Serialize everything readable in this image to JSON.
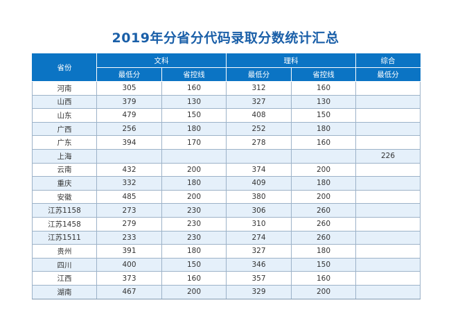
{
  "title": "2019年分省分代码录取分数统计汇总",
  "header": {
    "province": "省份",
    "wenke": "文科",
    "like": "理科",
    "zonghe": "综合",
    "min_score": "最低分",
    "control_line": "省控线"
  },
  "rows": [
    {
      "province": "河南",
      "wen_min": "305",
      "wen_ctrl": "160",
      "li_min": "312",
      "li_ctrl": "160",
      "zh_min": ""
    },
    {
      "province": "山西",
      "wen_min": "379",
      "wen_ctrl": "130",
      "li_min": "327",
      "li_ctrl": "130",
      "zh_min": ""
    },
    {
      "province": "山东",
      "wen_min": "479",
      "wen_ctrl": "150",
      "li_min": "408",
      "li_ctrl": "150",
      "zh_min": ""
    },
    {
      "province": "广西",
      "wen_min": "256",
      "wen_ctrl": "180",
      "li_min": "252",
      "li_ctrl": "180",
      "zh_min": ""
    },
    {
      "province": "广东",
      "wen_min": "394",
      "wen_ctrl": "170",
      "li_min": "278",
      "li_ctrl": "160",
      "zh_min": ""
    },
    {
      "province": "上海",
      "wen_min": "",
      "wen_ctrl": "",
      "li_min": "",
      "li_ctrl": "",
      "zh_min": "226"
    },
    {
      "province": "云南",
      "wen_min": "432",
      "wen_ctrl": "200",
      "li_min": "374",
      "li_ctrl": "200",
      "zh_min": ""
    },
    {
      "province": "重庆",
      "wen_min": "332",
      "wen_ctrl": "180",
      "li_min": "409",
      "li_ctrl": "180",
      "zh_min": ""
    },
    {
      "province": "安徽",
      "wen_min": "485",
      "wen_ctrl": "200",
      "li_min": "380",
      "li_ctrl": "200",
      "zh_min": ""
    },
    {
      "province": "江苏1158",
      "wen_min": "273",
      "wen_ctrl": "230",
      "li_min": "306",
      "li_ctrl": "260",
      "zh_min": ""
    },
    {
      "province": "江苏1458",
      "wen_min": "279",
      "wen_ctrl": "230",
      "li_min": "310",
      "li_ctrl": "260",
      "zh_min": ""
    },
    {
      "province": "江苏1511",
      "wen_min": "233",
      "wen_ctrl": "230",
      "li_min": "274",
      "li_ctrl": "260",
      "zh_min": ""
    },
    {
      "province": "贵州",
      "wen_min": "391",
      "wen_ctrl": "180",
      "li_min": "327",
      "li_ctrl": "180",
      "zh_min": ""
    },
    {
      "province": "四川",
      "wen_min": "400",
      "wen_ctrl": "150",
      "li_min": "346",
      "li_ctrl": "150",
      "zh_min": ""
    },
    {
      "province": "江西",
      "wen_min": "373",
      "wen_ctrl": "160",
      "li_min": "357",
      "li_ctrl": "160",
      "zh_min": ""
    },
    {
      "province": "湖南",
      "wen_min": "467",
      "wen_ctrl": "200",
      "li_min": "329",
      "li_ctrl": "200",
      "zh_min": ""
    }
  ],
  "colors": {
    "title": "#1a5fa8",
    "header_bg": "#0b74c4",
    "row_alt_bg": "#e5f0fa",
    "grid": "#9cb2c8"
  }
}
